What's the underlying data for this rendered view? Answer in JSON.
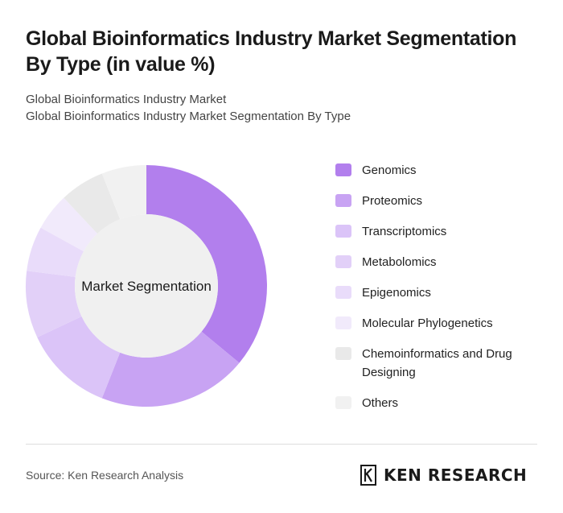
{
  "title": "Global Bioinformatics Industry Market Segmentation By Type (in value %)",
  "subtitle_lines": [
    "Global Bioinformatics Industry Market",
    "Global Bioinformatics Industry Market Segmentation By Type"
  ],
  "chart_data": {
    "type": "pie",
    "variant": "donut",
    "center_label": "Market Segmentation",
    "legend_position": "right",
    "slices": [
      {
        "label": "Genomics",
        "value": 36,
        "color": "#b27fed"
      },
      {
        "label": "Proteomics",
        "value": 20,
        "color": "#c8a3f3"
      },
      {
        "label": "Transcriptomics",
        "value": 12,
        "color": "#dbc4f8"
      },
      {
        "label": "Metabolomics",
        "value": 9,
        "color": "#e2d0f8"
      },
      {
        "label": "Epigenomics",
        "value": 6,
        "color": "#e9dcfa"
      },
      {
        "label": "Molecular Phylogenetics",
        "value": 5,
        "color": "#f1eafb"
      },
      {
        "label": "Chemoinformatics and Drug Designing",
        "value": 6,
        "color": "#e9e9e9"
      },
      {
        "label": "Others",
        "value": 6,
        "color": "#f1f1f1"
      }
    ]
  },
  "footer": {
    "source": "Source: Ken Research Analysis",
    "logo_text": "KEN RESEARCH"
  },
  "colors": {
    "center_fill": "#f0f0f0"
  }
}
